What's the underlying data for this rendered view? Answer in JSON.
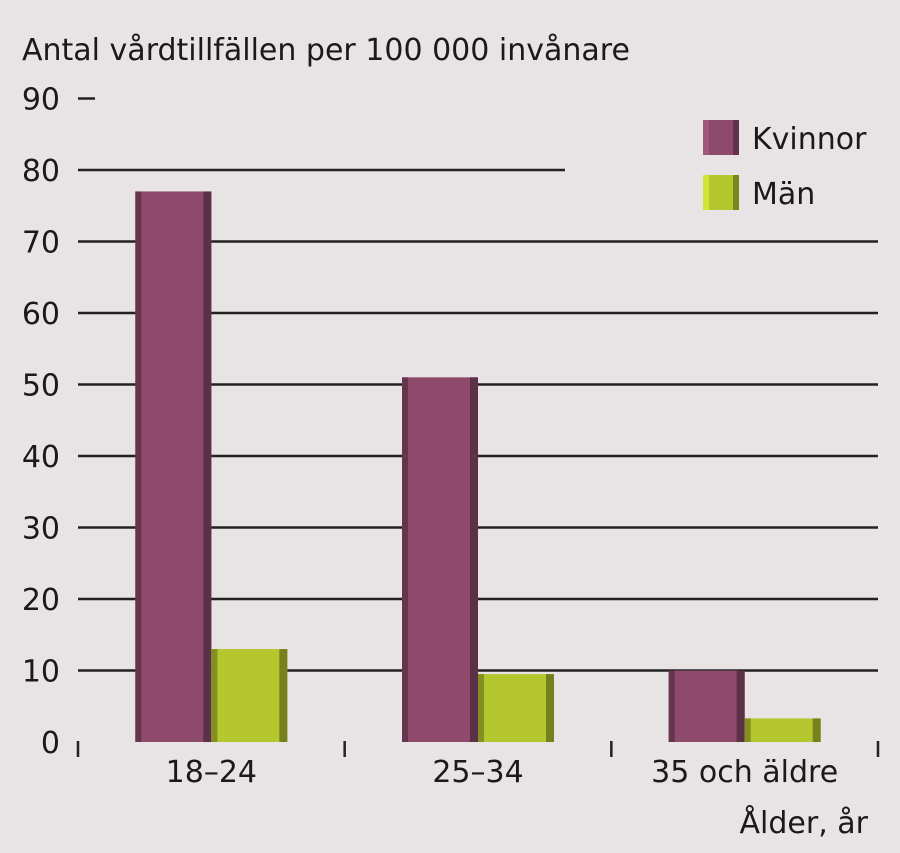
{
  "chart_data": {
    "type": "bar",
    "ylabel": "Antal vårdtillfällen per 100 000 invånare",
    "xlabel": "Ålder, år",
    "categories": [
      "18–24",
      "25–34",
      "35 och äldre"
    ],
    "series": [
      {
        "name": "Kvinnor",
        "values": [
          77,
          51,
          10
        ],
        "color": "#8e4a6b"
      },
      {
        "name": "Män",
        "values": [
          13,
          9.5,
          3.3
        ],
        "color": "#b5c72e"
      }
    ],
    "ylim": [
      0,
      90
    ],
    "yticks": [
      0,
      10,
      20,
      30,
      40,
      50,
      60,
      70,
      80,
      90
    ],
    "grid": true,
    "legend": "top-right"
  }
}
